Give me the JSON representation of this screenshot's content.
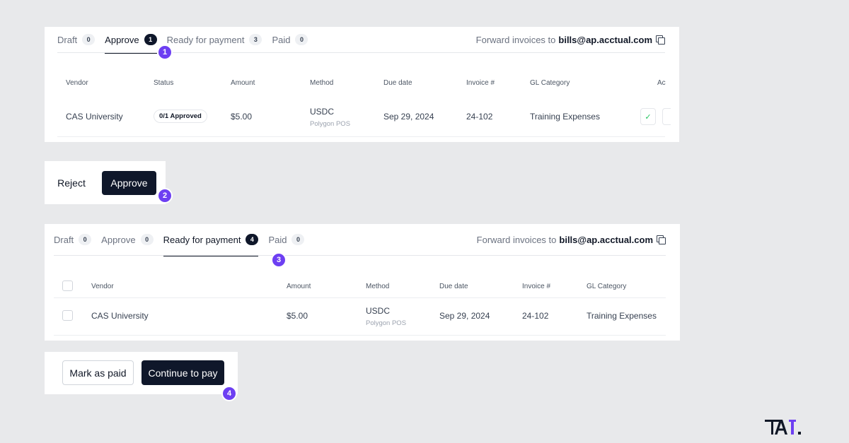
{
  "approve_view": {
    "tabs": [
      {
        "label": "Draft",
        "count": "0"
      },
      {
        "label": "Approve",
        "count": "1"
      },
      {
        "label": "Ready for payment",
        "count": "3"
      },
      {
        "label": "Paid",
        "count": "0"
      }
    ],
    "active_tab": "Approve",
    "forward_text": "Forward invoices to",
    "forward_email": "bills@ap.acctual.com",
    "columns": [
      "Vendor",
      "Status",
      "Amount",
      "Method",
      "Due date",
      "Invoice #",
      "GL Category",
      "Ac"
    ],
    "row": {
      "vendor": "CAS University",
      "status": "0/1 Approved",
      "amount": "$5.00",
      "method": "USDC",
      "network": "Polygon POS",
      "due_date": "Sep 29, 2024",
      "invoice": "24-102",
      "gl_category": "Training Expenses",
      "approve_icon": "check-icon"
    }
  },
  "approval_actions": {
    "reject_label": "Reject",
    "approve_label": "Approve"
  },
  "payment_view": {
    "tabs": [
      {
        "label": "Draft",
        "count": "0"
      },
      {
        "label": "Approve",
        "count": "0"
      },
      {
        "label": "Ready for payment",
        "count": "4"
      },
      {
        "label": "Paid",
        "count": "0"
      }
    ],
    "active_tab": "Ready for payment",
    "forward_text": "Forward invoices to",
    "forward_email": "bills@ap.acctual.com",
    "columns": [
      "Vendor",
      "Amount",
      "Method",
      "Due date",
      "Invoice #",
      "GL Category"
    ],
    "row": {
      "vendor": "CAS University",
      "amount": "$5.00",
      "method": "USDC",
      "network": "Polygon POS",
      "due_date": "Sep 29, 2024",
      "invoice": "24-102",
      "gl_category": "Training Expenses"
    }
  },
  "payment_actions": {
    "mark_paid_label": "Mark as paid",
    "continue_label": "Continue to pay"
  },
  "steps": [
    "1",
    "2",
    "3",
    "4"
  ],
  "colors": {
    "step_badge": "#6d3ff2",
    "primary_button": "#0f172a",
    "background": "#e8e9eb"
  }
}
